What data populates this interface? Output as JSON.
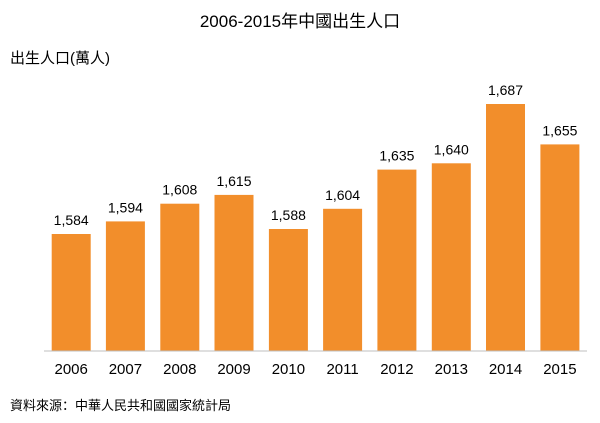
{
  "chart_data": {
    "type": "bar",
    "title": "2006-2015年中國出生人口",
    "ylabel": "出生人口(萬人)",
    "xlabel": "",
    "categories": [
      "2006",
      "2007",
      "2008",
      "2009",
      "2010",
      "2011",
      "2012",
      "2013",
      "2014",
      "2015"
    ],
    "values": [
      1584,
      1594,
      1608,
      1615,
      1588,
      1604,
      1635,
      1640,
      1687,
      1655
    ],
    "value_labels": [
      "1,584",
      "1,594",
      "1,608",
      "1,615",
      "1,588",
      "1,604",
      "1,635",
      "1,640",
      "1,687",
      "1,655"
    ],
    "ylim": [
      1500,
      1700
    ],
    "grid": false,
    "legend": "none",
    "bar_color": "#F28E2B",
    "source": "資料來源：中華人民共和國國家統計局"
  }
}
